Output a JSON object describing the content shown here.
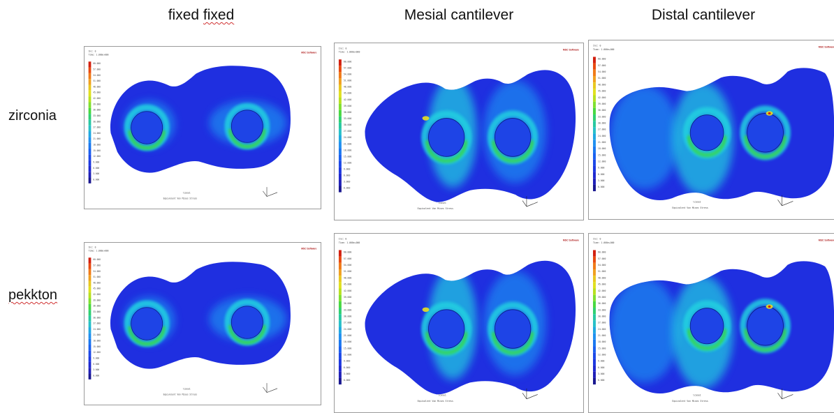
{
  "columns": [
    {
      "label": "fixed fixed"
    },
    {
      "label": "Mesial cantilever"
    },
    {
      "label": "Distal cantilever"
    }
  ],
  "rows": [
    {
      "label": "zirconia"
    },
    {
      "label": "pekkton"
    }
  ],
  "panel_text": {
    "step": "Inc:   0",
    "time": "Time:  1.000e+000",
    "logo": "MSC Software",
    "subtitle": "Equivalent Von Mises Stress",
    "lcase": "lcase1"
  },
  "legend_labels": [
    "60.000",
    "57.000",
    "54.000",
    "51.000",
    "48.000",
    "45.000",
    "42.000",
    "39.000",
    "36.000",
    "33.000",
    "30.000",
    "27.000",
    "24.000",
    "21.000",
    "18.000",
    "15.000",
    "12.000",
    "9.000",
    "6.000",
    "3.000",
    "0.000"
  ],
  "colors": {
    "base": "#1f2fe0",
    "mid": "#1a8cf0",
    "cyan": "#22d0e0",
    "green": "#39d64a",
    "yellow": "#e8e020",
    "red": "#d02a10",
    "legend": [
      "#d22010",
      "#e84a10",
      "#f07a18",
      "#f0a020",
      "#e8c820",
      "#e0e020",
      "#b8e020",
      "#80e030",
      "#48d840",
      "#30d070",
      "#28c8a0",
      "#28c0c8",
      "#20a8e0",
      "#2090f0",
      "#1a78f0",
      "#1a60f0",
      "#1c48e8",
      "#1c38e0",
      "#1e28d0",
      "#2020b8",
      "#1a1890"
    ]
  },
  "zones": {
    "fixed": {
      "left": "mid",
      "right": "mid"
    },
    "mesial": {
      "left": "base",
      "mid": "cyan",
      "right": "mid"
    },
    "distal": {
      "left": "mid",
      "mid": "cyan",
      "right": "base"
    }
  }
}
